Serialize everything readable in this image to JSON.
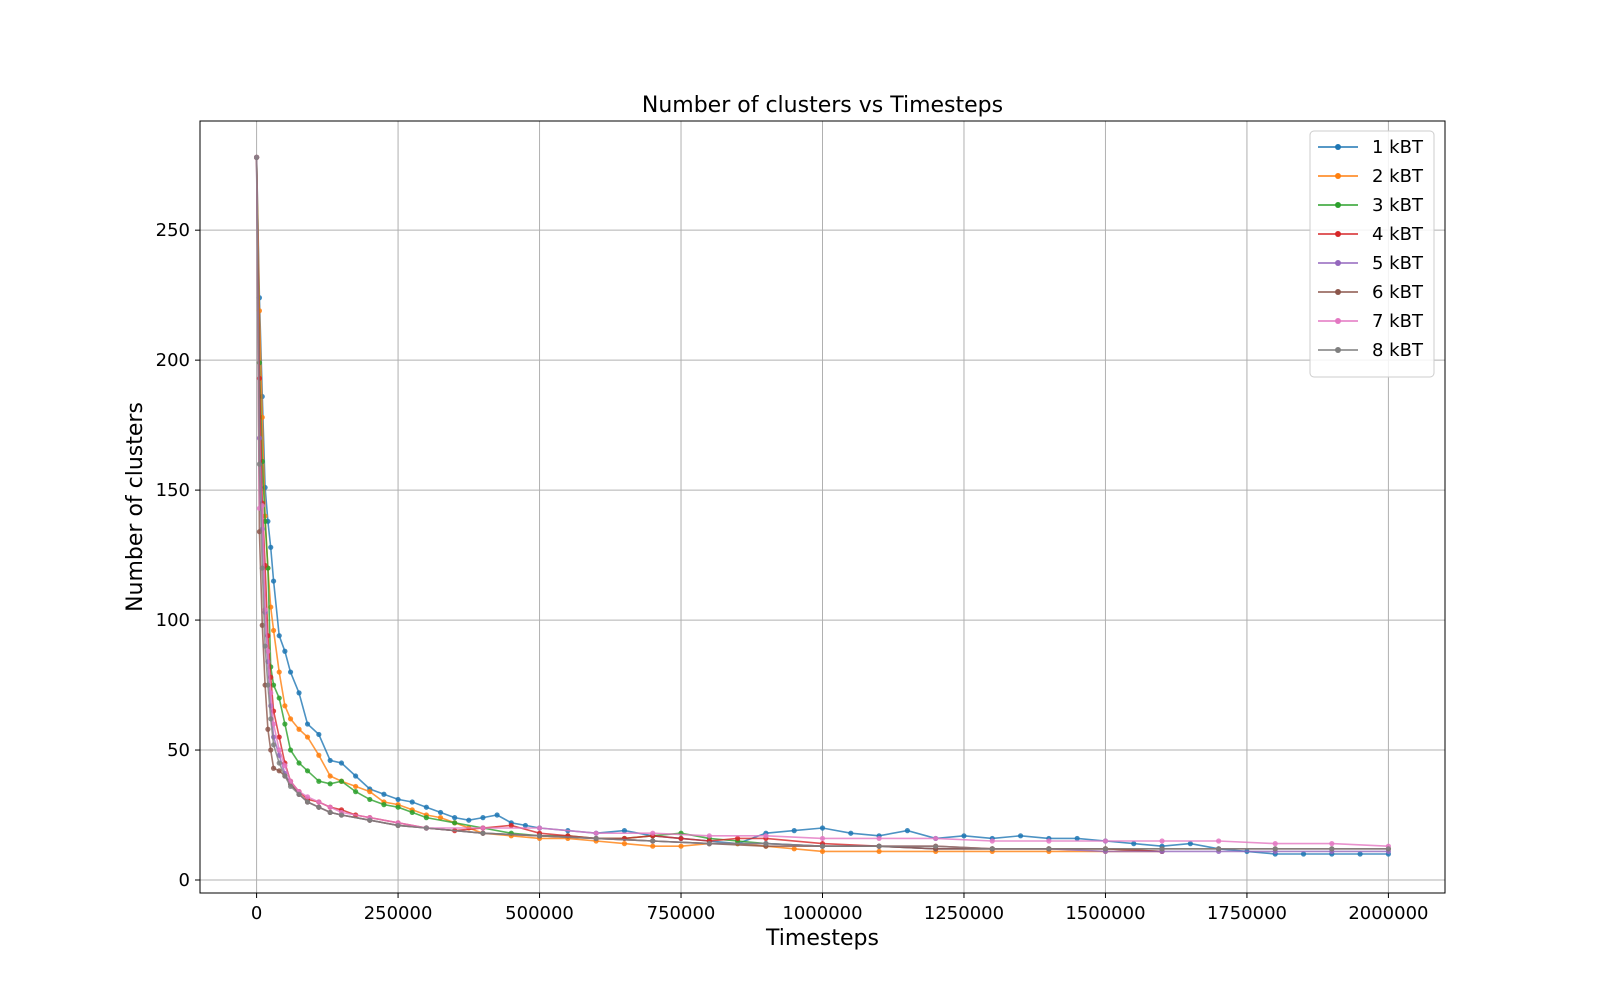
{
  "chart_data": {
    "type": "line",
    "title": "Number of clusters vs Timesteps",
    "xlabel": "Timesteps",
    "ylabel": "Number of clusters",
    "xlim": [
      -100000,
      2100000
    ],
    "ylim": [
      -5,
      292
    ],
    "x_ticks": [
      0,
      250000,
      500000,
      750000,
      1000000,
      1250000,
      1500000,
      1750000,
      2000000
    ],
    "y_ticks": [
      0,
      50,
      100,
      150,
      200,
      250
    ],
    "grid": true,
    "legend_position": "top-right",
    "series": [
      {
        "name": "1 kBT",
        "color": "#1f77b4",
        "x": [
          0,
          5000,
          10000,
          15000,
          20000,
          25000,
          30000,
          40000,
          50000,
          60000,
          75000,
          90000,
          110000,
          130000,
          150000,
          175000,
          200000,
          225000,
          250000,
          275000,
          300000,
          325000,
          350000,
          375000,
          400000,
          425000,
          450000,
          475000,
          500000,
          550000,
          600000,
          650000,
          700000,
          750000,
          800000,
          850000,
          900000,
          950000,
          1000000,
          1050000,
          1100000,
          1150000,
          1200000,
          1250000,
          1300000,
          1350000,
          1400000,
          1450000,
          1500000,
          1550000,
          1600000,
          1650000,
          1700000,
          1750000,
          1800000,
          1850000,
          1900000,
          1950000,
          2000000
        ],
        "y": [
          278,
          224,
          186,
          151,
          138,
          128,
          115,
          94,
          88,
          80,
          72,
          60,
          56,
          46,
          45,
          40,
          35,
          33,
          31,
          30,
          28,
          26,
          24,
          23,
          24,
          25,
          22,
          21,
          20,
          19,
          18,
          19,
          17,
          16,
          15,
          14,
          18,
          19,
          20,
          18,
          17,
          19,
          16,
          17,
          16,
          17,
          16,
          16,
          15,
          14,
          13,
          14,
          12,
          11,
          10,
          10,
          10,
          10,
          10
        ]
      },
      {
        "name": "2 kBT",
        "color": "#ff7f0e",
        "x": [
          0,
          5000,
          10000,
          15000,
          20000,
          25000,
          30000,
          40000,
          50000,
          60000,
          75000,
          90000,
          110000,
          130000,
          150000,
          175000,
          200000,
          225000,
          250000,
          275000,
          300000,
          325000,
          350000,
          375000,
          400000,
          450000,
          500000,
          550000,
          600000,
          650000,
          700000,
          750000,
          800000,
          850000,
          900000,
          950000,
          1000000,
          1100000,
          1200000,
          1300000,
          1400000,
          1500000,
          1600000
        ],
        "y": [
          278,
          219,
          178,
          140,
          120,
          105,
          96,
          80,
          67,
          62,
          58,
          55,
          48,
          40,
          38,
          36,
          34,
          30,
          29,
          27,
          25,
          24,
          22,
          20,
          18,
          17,
          16,
          16,
          15,
          14,
          13,
          13,
          14,
          14,
          13,
          12,
          11,
          11,
          11,
          11,
          11,
          11,
          11
        ]
      },
      {
        "name": "3 kBT",
        "color": "#2ca02c",
        "x": [
          0,
          5000,
          10000,
          15000,
          20000,
          25000,
          30000,
          40000,
          50000,
          60000,
          75000,
          90000,
          110000,
          130000,
          150000,
          175000,
          200000,
          225000,
          250000,
          275000,
          300000,
          350000,
          400000,
          450000,
          500000,
          550000,
          600000,
          650000,
          700000,
          750000,
          800000,
          850000,
          900000,
          1000000,
          1100000,
          1200000,
          1300000,
          1400000,
          1500000,
          1600000
        ],
        "y": [
          278,
          199,
          161,
          138,
          120,
          82,
          75,
          70,
          60,
          50,
          45,
          42,
          38,
          37,
          38,
          34,
          31,
          29,
          28,
          26,
          24,
          22,
          20,
          18,
          17,
          17,
          16,
          16,
          17,
          18,
          16,
          15,
          14,
          13,
          13,
          12,
          12,
          12,
          12,
          11
        ]
      },
      {
        "name": "4 kBT",
        "color": "#d62728",
        "x": [
          0,
          5000,
          10000,
          15000,
          20000,
          25000,
          30000,
          40000,
          50000,
          60000,
          75000,
          90000,
          110000,
          130000,
          150000,
          175000,
          200000,
          250000,
          300000,
          350000,
          400000,
          450000,
          500000,
          550000,
          600000,
          650000,
          700000,
          750000,
          800000,
          850000,
          900000,
          1000000,
          1100000,
          1200000,
          1300000,
          1400000,
          1500000,
          1600000
        ],
        "y": [
          278,
          193,
          145,
          121,
          94,
          78,
          65,
          55,
          45,
          38,
          34,
          31,
          30,
          28,
          27,
          25,
          24,
          22,
          20,
          19,
          20,
          21,
          18,
          17,
          16,
          16,
          17,
          16,
          15,
          16,
          16,
          14,
          13,
          13,
          12,
          12,
          12,
          11
        ]
      },
      {
        "name": "5 kBT",
        "color": "#9467bd",
        "x": [
          0,
          5000,
          10000,
          15000,
          20000,
          25000,
          30000,
          40000,
          50000,
          60000,
          75000,
          90000,
          110000,
          130000,
          150000,
          200000,
          250000,
          300000,
          400000,
          500000,
          600000,
          700000,
          800000,
          900000,
          1000000,
          1100000,
          1200000,
          1300000,
          1400000,
          1500000,
          1600000,
          1700000,
          1800000,
          1900000,
          2000000
        ],
        "y": [
          278,
          170,
          135,
          103,
          84,
          67,
          55,
          48,
          41,
          37,
          33,
          30,
          28,
          26,
          25,
          23,
          21,
          20,
          18,
          17,
          16,
          15,
          14,
          14,
          13,
          13,
          12,
          12,
          12,
          11,
          11,
          11,
          11,
          11,
          11
        ]
      },
      {
        "name": "6 kBT",
        "color": "#8c564b",
        "x": [
          0,
          5000,
          10000,
          15000,
          20000,
          25000,
          30000,
          40000,
          50000,
          60000,
          75000,
          90000,
          110000,
          130000,
          150000,
          200000,
          250000,
          300000,
          400000,
          500000,
          600000,
          700000,
          800000,
          900000,
          1000000,
          1100000,
          1200000,
          1300000,
          1400000,
          1500000,
          1600000,
          1700000,
          1800000,
          1900000,
          2000000
        ],
        "y": [
          278,
          134,
          98,
          75,
          58,
          50,
          43,
          42,
          40,
          37,
          33,
          30,
          28,
          26,
          25,
          23,
          21,
          20,
          18,
          17,
          16,
          15,
          14,
          13,
          13,
          13,
          12,
          12,
          12,
          12,
          12,
          12,
          12,
          12,
          12
        ]
      },
      {
        "name": "7 kBT",
        "color": "#e377c2",
        "x": [
          0,
          5000,
          10000,
          15000,
          20000,
          25000,
          30000,
          40000,
          50000,
          60000,
          75000,
          90000,
          110000,
          130000,
          150000,
          200000,
          250000,
          300000,
          400000,
          500000,
          600000,
          700000,
          800000,
          900000,
          1000000,
          1100000,
          1200000,
          1300000,
          1400000,
          1500000,
          1600000,
          1700000,
          1800000,
          1900000,
          2000000
        ],
        "y": [
          278,
          143,
          144,
          104,
          88,
          72,
          60,
          50,
          44,
          38,
          34,
          32,
          30,
          28,
          26,
          24,
          22,
          20,
          20,
          20,
          18,
          18,
          17,
          17,
          16,
          16,
          16,
          15,
          15,
          15,
          15,
          15,
          14,
          14,
          13
        ]
      },
      {
        "name": "8 kBT",
        "color": "#7f7f7f",
        "x": [
          0,
          5000,
          10000,
          15000,
          20000,
          25000,
          30000,
          40000,
          50000,
          60000,
          75000,
          90000,
          110000,
          130000,
          150000,
          200000,
          250000,
          300000,
          400000,
          500000,
          600000,
          700000,
          800000,
          900000,
          1000000,
          1100000,
          1200000,
          1300000,
          1400000,
          1500000,
          1600000,
          1700000,
          1800000,
          1900000,
          2000000
        ],
        "y": [
          278,
          160,
          120,
          90,
          75,
          62,
          52,
          45,
          40,
          36,
          33,
          30,
          28,
          26,
          25,
          23,
          21,
          20,
          18,
          17,
          16,
          15,
          14,
          14,
          13,
          13,
          13,
          12,
          12,
          12,
          12,
          12,
          12,
          12,
          12
        ]
      }
    ]
  }
}
